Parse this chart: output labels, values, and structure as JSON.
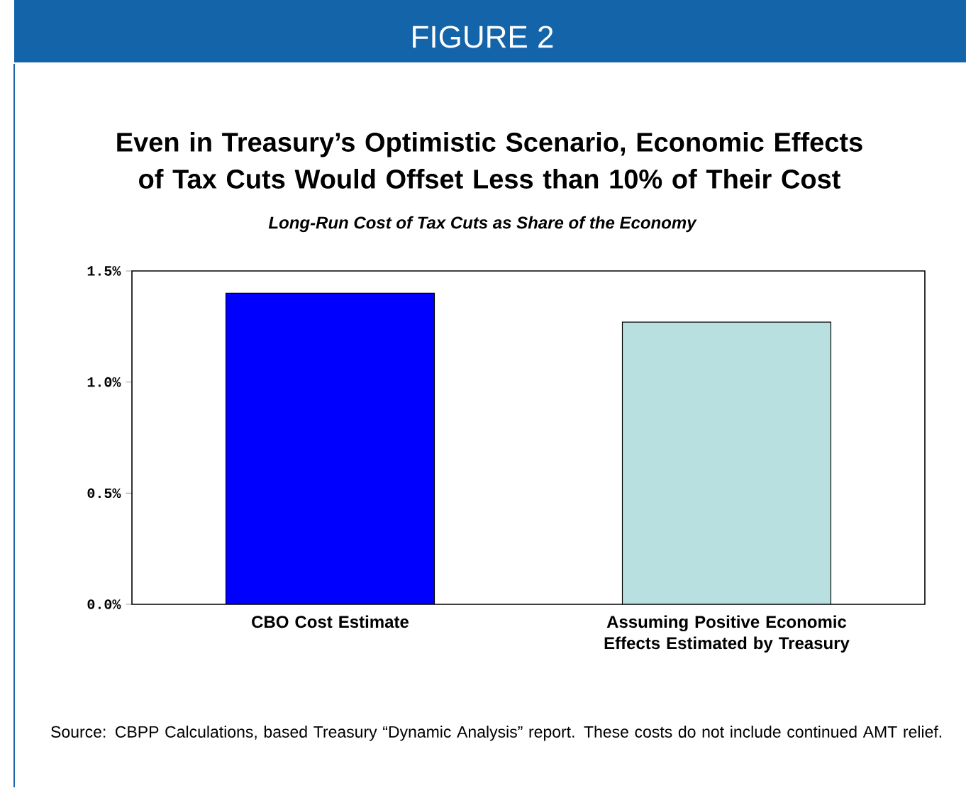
{
  "chart_data": {
    "type": "bar",
    "title": "Even in Treasury’s Optimistic Scenario, Economic Effects of Tax Cuts Would Offset Less than 10% of Their Cost",
    "subtitle": "Long-Run Cost of Tax Cuts as Share of the Economy",
    "categories": [
      "CBO Cost Estimate",
      "Assuming Positive Economic Effects Estimated by Treasury"
    ],
    "values": [
      1.4,
      1.27
    ],
    "colors": [
      "#0000ff",
      "#b8e0e0"
    ],
    "ylim": [
      0,
      1.5
    ],
    "yticks": [
      {
        "value": 0,
        "label": "0.0%"
      },
      {
        "value": 0.5,
        "label": "0.5%"
      },
      {
        "value": 1.0,
        "label": "1.0%"
      },
      {
        "value": 1.5,
        "label": "1.5%"
      }
    ],
    "grid": false,
    "annotations": [
      "FIGURE 2",
      "Source: CBPP Calculations, based Treasury “Dynamic Analysis” report.  These costs do not include continued AMT relief."
    ]
  }
}
